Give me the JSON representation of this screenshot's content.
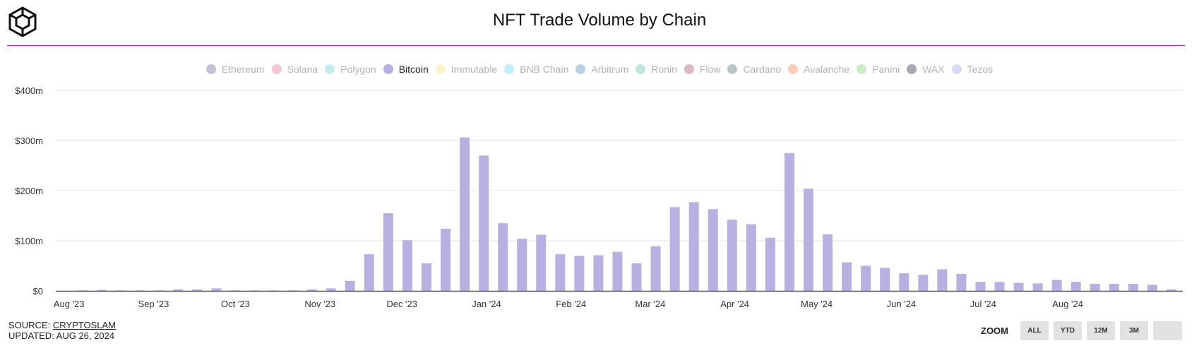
{
  "title": "NFT Trade Volume by Chain",
  "legend": [
    {
      "label": "Ethereum",
      "color": "#c4c2d6",
      "active": false
    },
    {
      "label": "Solana",
      "color": "#f6c7d3",
      "active": false
    },
    {
      "label": "Polygon",
      "color": "#c6ebef",
      "active": false
    },
    {
      "label": "Bitcoin",
      "color": "#b8b0e0",
      "active": true
    },
    {
      "label": "Immutable",
      "color": "#fdf2c9",
      "active": false
    },
    {
      "label": "BNB Chain",
      "color": "#bfeffb",
      "active": false
    },
    {
      "label": "Arbitrum",
      "color": "#b7d0e3",
      "active": false
    },
    {
      "label": "Ronin",
      "color": "#bfe7df",
      "active": false
    },
    {
      "label": "Flow",
      "color": "#dcb8c8",
      "active": false
    },
    {
      "label": "Cardano",
      "color": "#b9c6c6",
      "active": false
    },
    {
      "label": "Avalanche",
      "color": "#fbcdb8",
      "active": false
    },
    {
      "label": "Panini",
      "color": "#cdebc2",
      "active": false
    },
    {
      "label": "WAX",
      "color": "#a9a6b6",
      "active": false
    },
    {
      "label": "Tezos",
      "color": "#d7d9f6",
      "active": false
    }
  ],
  "chart_data": {
    "type": "bar",
    "title": "NFT Trade Volume by Chain",
    "series": [
      {
        "name": "Bitcoin",
        "color": "#b8b0e0",
        "values": [
          1,
          2,
          1,
          1,
          1,
          3,
          3,
          5,
          1,
          1,
          1,
          1,
          3,
          5,
          20,
          73,
          155,
          101,
          55,
          124,
          306,
          270,
          135,
          104,
          112,
          73,
          70,
          71,
          78,
          55,
          89,
          167,
          177,
          163,
          142,
          133,
          106,
          275,
          204,
          113,
          57,
          50,
          46,
          35,
          32,
          43,
          34,
          18,
          18,
          16,
          15,
          22,
          18,
          14,
          14,
          14,
          12,
          3
        ]
      }
    ],
    "x_start": "2023-08-06",
    "x_interval": "weekly",
    "x_ticks": [
      "Aug '23",
      "Sep '23",
      "Oct '23",
      "Nov '23",
      "Dec '23",
      "Jan '24",
      "Feb '24",
      "Mar '24",
      "Apr '24",
      "May '24",
      "Jun '24",
      "Jul '24",
      "Aug '24"
    ],
    "y_ticks": [
      "$0",
      "$100m",
      "$200m",
      "$300m",
      "$400m"
    ],
    "ylim": [
      0,
      400
    ],
    "y_unit": "$m",
    "grid": true
  },
  "source": {
    "prefix": "SOURCE:",
    "name": "CRYPTOSLAM",
    "updated": "UPDATED: AUG 26, 2024"
  },
  "zoom": {
    "label": "ZOOM",
    "buttons": [
      "ALL",
      "YTD",
      "12M",
      "3M",
      ""
    ]
  }
}
